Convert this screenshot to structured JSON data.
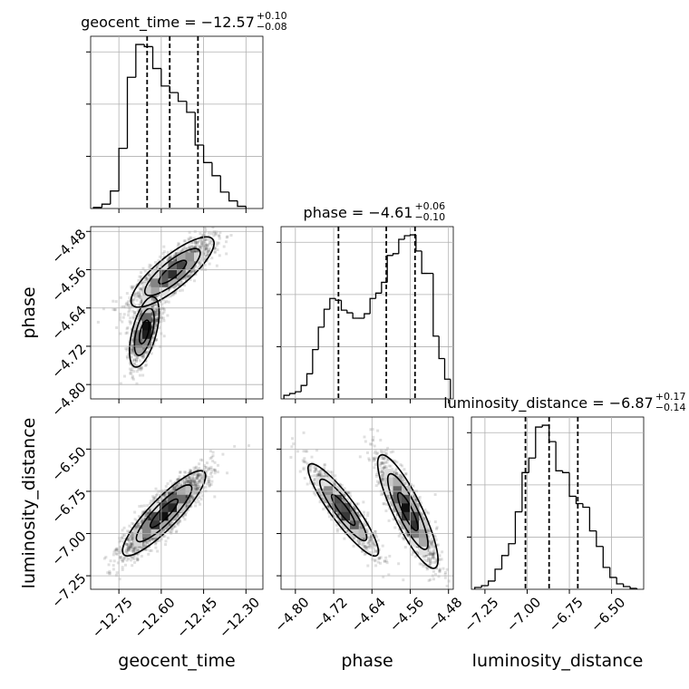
{
  "chart_data": {
    "type": "corner",
    "parameters": [
      "geocent_time",
      "phase",
      "luminosity_distance"
    ],
    "ranges": {
      "geocent_time": [
        -12.85,
        -12.24
      ],
      "phase": [
        -4.83,
        -4.47
      ],
      "luminosity_distance": [
        -7.33,
        -6.31
      ]
    },
    "ticks": {
      "geocent_time": [
        -12.75,
        -12.6,
        -12.45,
        -12.3
      ],
      "phase": [
        -4.8,
        -4.72,
        -4.64,
        -4.56,
        -4.48
      ],
      "luminosity_distance": [
        -7.25,
        -7.0,
        -6.75,
        -6.5
      ]
    },
    "tick_labels": {
      "geocent_time": [
        "−12.75",
        "−12.60",
        "−12.45",
        "−12.30"
      ],
      "phase": [
        "−4.80",
        "−4.72",
        "−4.64",
        "−4.56",
        "−4.48"
      ],
      "luminosity_distance": [
        "−7.25",
        "−7.00",
        "−6.75",
        "−6.50"
      ]
    },
    "axis_labels": {
      "geocent_time": "geocent_time",
      "phase": "phase",
      "luminosity_distance": "luminosity_distance"
    },
    "grid": true,
    "titles": [
      {
        "param": "geocent_time",
        "text": "geocent_time = −12.57",
        "plus": "+0.10",
        "minus": "−0.08"
      },
      {
        "param": "phase",
        "text": "phase = −4.61",
        "plus": "+0.06",
        "minus": "−0.10"
      },
      {
        "param": "luminosity_distance",
        "text": "luminosity_distance = −6.87",
        "plus": "+0.17",
        "minus": "−0.14"
      }
    ],
    "quantiles": {
      "geocent_time": [
        -12.65,
        -12.57,
        -12.47
      ],
      "phase": [
        -4.71,
        -4.61,
        -4.55
      ],
      "luminosity_distance": [
        -7.01,
        -6.87,
        -6.7
      ]
    },
    "histograms": {
      "geocent_time": {
        "edges": [
          -12.84,
          -12.81,
          -12.78,
          -12.75,
          -12.72,
          -12.69,
          -12.66,
          -12.63,
          -12.6,
          -12.57,
          -12.54,
          -12.51,
          -12.48,
          -12.45,
          -12.42,
          -12.39,
          -12.36,
          -12.33,
          -12.3
        ],
        "counts": [
          1,
          4,
          16,
          55,
          120,
          150,
          148,
          128,
          112,
          106,
          98,
          88,
          58,
          42,
          30,
          15,
          7,
          2
        ]
      },
      "phase": {
        "edges": [
          -4.824,
          -4.812,
          -4.8,
          -4.788,
          -4.776,
          -4.764,
          -4.752,
          -4.74,
          -4.728,
          -4.716,
          -4.704,
          -4.692,
          -4.68,
          -4.668,
          -4.656,
          -4.644,
          -4.632,
          -4.62,
          -4.608,
          -4.596,
          -4.584,
          -4.572,
          -4.56,
          -4.548,
          -4.536,
          -4.524,
          -4.512,
          -4.5,
          -4.488,
          -4.476
        ],
        "counts": [
          4,
          6,
          8,
          15,
          28,
          55,
          80,
          100,
          112,
          110,
          99,
          96,
          90,
          90,
          95,
          112,
          118,
          130,
          160,
          162,
          178,
          182,
          183,
          165,
          140,
          140,
          70,
          45,
          22
        ]
      },
      "luminosity_distance": {
        "edges": [
          -7.31,
          -7.27,
          -7.23,
          -7.19,
          -7.15,
          -7.11,
          -7.07,
          -7.03,
          -6.99,
          -6.95,
          -6.91,
          -6.87,
          -6.83,
          -6.79,
          -6.75,
          -6.71,
          -6.67,
          -6.63,
          -6.59,
          -6.55,
          -6.51,
          -6.47,
          -6.43,
          -6.39,
          -6.35
        ],
        "counts": [
          2,
          4,
          9,
          22,
          37,
          50,
          85,
          128,
          144,
          178,
          180,
          162,
          130,
          128,
          102,
          94,
          90,
          64,
          47,
          24,
          13,
          6,
          3,
          1
        ]
      }
    },
    "density_2d": [
      {
        "x": "geocent_time",
        "y": "phase",
        "components": [
          {
            "mean": [
              -12.56,
              -4.565
            ],
            "sd": [
              0.07,
              0.035
            ],
            "corr": 0.82,
            "n": 1500,
            "weight": 0.62
          },
          {
            "mean": [
              -12.66,
              -4.69
            ],
            "sd": [
              0.025,
              0.035
            ],
            "corr": 0.55,
            "n": 900,
            "weight": 0.38
          }
        ]
      },
      {
        "x": "geocent_time",
        "y": "luminosity_distance",
        "components": [
          {
            "mean": [
              -12.59,
              -6.88
            ],
            "sd": [
              0.07,
              0.12
            ],
            "corr": 0.88,
            "n": 2400,
            "weight": 1.0
          }
        ]
      },
      {
        "x": "phase",
        "y": "luminosity_distance",
        "components": [
          {
            "mean": [
              -4.7,
              -6.86
            ],
            "sd": [
              0.035,
              0.13
            ],
            "corr": -0.9,
            "n": 1000,
            "weight": 0.42
          },
          {
            "mean": [
              -4.565,
              -6.87
            ],
            "sd": [
              0.03,
              0.16
            ],
            "corr": -0.85,
            "n": 1400,
            "weight": 0.58
          }
        ]
      }
    ]
  }
}
